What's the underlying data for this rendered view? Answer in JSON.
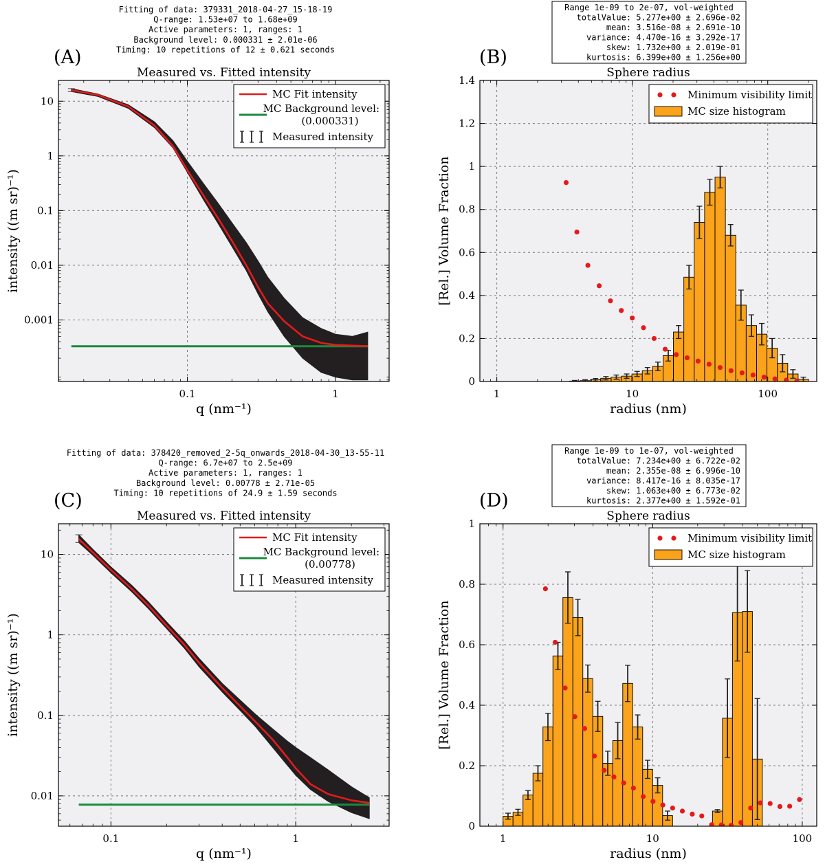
{
  "chart_data": [
    {
      "id": "A",
      "type": "line",
      "panel_label": "(A)",
      "header_lines": [
        "Fitting of data: 379331_2018-04-27_15-18-19",
        "Q-range: 1.53e+07 to 1.68e+09",
        "Active parameters: 1, ranges: 1",
        "Background level: 0.000331 ± 2.01e-06",
        "Timing: 10 repetitions of  12 ± 0.621 seconds"
      ],
      "title": "Measured vs. Fitted intensity",
      "xlabel": "q (nm⁻¹)",
      "ylabel": "intensity ((m sr)⁻¹)",
      "xscale": "log",
      "yscale": "log",
      "xlim": [
        0.0135,
        2.3
      ],
      "ylim": [
        7.5e-05,
        24
      ],
      "xticks": [
        {
          "v": 0.1,
          "label": "0.1"
        },
        {
          "v": 1,
          "label": "1"
        }
      ],
      "yticks": [
        {
          "v": 10,
          "label": "10"
        },
        {
          "v": 1,
          "label": "1"
        },
        {
          "v": 0.1,
          "label": "0.1"
        },
        {
          "v": 0.01,
          "label": "0.01"
        },
        {
          "v": 0.001,
          "label": "0.001"
        }
      ],
      "legend": [
        "MC Fit intensity",
        "MC Background level:",
        "(0.000331)",
        "Measured intensity"
      ],
      "legend_position": "top-right",
      "fit_curve": {
        "q": [
          0.0165,
          0.025,
          0.04,
          0.06,
          0.08,
          0.1,
          0.13,
          0.16,
          0.2,
          0.25,
          0.3,
          0.35,
          0.45,
          0.6,
          0.8,
          1.0,
          1.3,
          1.65
        ],
        "I": [
          16,
          13,
          8,
          3.6,
          1.5,
          0.55,
          0.18,
          0.075,
          0.028,
          0.01,
          0.004,
          0.002,
          0.00095,
          0.0005,
          0.00038,
          0.00035,
          0.00034,
          0.000332
        ]
      },
      "measured_upper": {
        "q": [
          0.0165,
          0.025,
          0.04,
          0.06,
          0.08,
          0.1,
          0.13,
          0.16,
          0.2,
          0.25,
          0.3,
          0.35,
          0.45,
          0.6,
          0.8,
          1.0,
          1.3,
          1.65
        ],
        "I": [
          17,
          13.5,
          8.6,
          4.2,
          1.9,
          0.8,
          0.3,
          0.14,
          0.06,
          0.026,
          0.012,
          0.006,
          0.0025,
          0.0011,
          0.0007,
          0.00055,
          0.0005,
          0.0006
        ]
      },
      "measured_lower": {
        "q": [
          0.0165,
          0.025,
          0.04,
          0.06,
          0.08,
          0.1,
          0.13,
          0.16,
          0.2,
          0.25,
          0.3,
          0.35,
          0.45,
          0.6,
          0.8,
          1.0,
          1.3,
          1.65
        ],
        "I": [
          15,
          12.2,
          7.4,
          3.3,
          1.4,
          0.5,
          0.15,
          0.06,
          0.022,
          0.008,
          0.003,
          0.0014,
          0.0005,
          0.0002,
          0.00011,
          9e-05,
          8e-05,
          8e-05
        ]
      },
      "background_level": 0.000331,
      "background_range": [
        0.0165,
        1.65
      ]
    },
    {
      "id": "B",
      "type": "bar",
      "panel_label": "(B)",
      "stats_lines": [
        "Range 1e-09 to 2e-07, vol-weighted",
        "totalValue: 5.277e+00 ± 2.696e-02",
        "mean: 3.516e-08 ± 2.691e-10",
        "variance: 4.470e-16 ± 3.292e-17",
        "skew: 1.732e+00 ± 2.019e-01",
        "kurtosis: 6.399e+00 ± 1.256e+00"
      ],
      "title": "Sphere radius",
      "xlabel": "radius (nm)",
      "ylabel": "[Rel.] Volume Fraction",
      "xscale": "log",
      "xlim": [
        0.75,
        230
      ],
      "ylim": [
        0,
        1.4
      ],
      "xticks": [
        {
          "v": 1,
          "label": "1"
        },
        {
          "v": 10,
          "label": "10"
        },
        {
          "v": 100,
          "label": "100"
        }
      ],
      "yticks": [
        {
          "v": 0,
          "label": "0"
        },
        {
          "v": 0.2,
          "label": "0.2"
        },
        {
          "v": 0.4,
          "label": "0.4"
        },
        {
          "v": 0.6,
          "label": "0.6"
        },
        {
          "v": 0.8,
          "label": "0.8"
        },
        {
          "v": 1.0,
          "label": "1"
        },
        {
          "v": 1.2,
          "label": "1.2"
        },
        {
          "v": 1.4,
          "label": "1.4"
        }
      ],
      "legend": [
        "Minimum visibility limit",
        "MC size histogram"
      ],
      "legend_position": "top-right",
      "bins": {
        "min": 1,
        "max": 200,
        "count": 30
      },
      "values": [
        0,
        0,
        0,
        0,
        0,
        0,
        0,
        0.002,
        0.004,
        0.008,
        0.015,
        0.02,
        0.025,
        0.035,
        0.05,
        0.07,
        0.12,
        0.23,
        0.485,
        0.74,
        0.88,
        0.95,
        0.68,
        0.355,
        0.26,
        0.22,
        0.155,
        0.085,
        0.035,
        0.01
      ],
      "errors": [
        0,
        0,
        0,
        0,
        0,
        0,
        0,
        0.003,
        0.004,
        0.006,
        0.008,
        0.01,
        0.01,
        0.012,
        0.015,
        0.02,
        0.025,
        0.03,
        0.055,
        0.075,
        0.06,
        0.05,
        0.05,
        0.07,
        0.05,
        0.05,
        0.045,
        0.04,
        0.02,
        0.01
      ],
      "min_visibility": {
        "r": [
          3.25,
          3.9,
          4.7,
          5.7,
          6.9,
          8.3,
          10.0,
          12.1,
          14.5,
          17.5,
          21.1,
          25.4,
          30.6,
          36.9,
          44.5,
          53.6,
          64.6,
          77.9,
          93.9,
          113.0,
          137.0,
          164.0
        ],
        "v": [
          0.925,
          0.695,
          0.54,
          0.445,
          0.375,
          0.33,
          0.295,
          0.25,
          0.2,
          0.15,
          0.125,
          0.11,
          0.095,
          0.08,
          0.065,
          0.05,
          0.04,
          0.03,
          0.02,
          0.012,
          0.006,
          0.002
        ]
      }
    },
    {
      "id": "C",
      "type": "line",
      "panel_label": "(C)",
      "header_lines": [
        "Fitting of data: 378420_removed_2-5q_onwards_2018-04-30_13-55-11",
        "Q-range: 6.7e+07 to 2.5e+09",
        "Active parameters: 1, ranges: 1",
        "Background level: 0.00778 ± 2.71e-05",
        "Timing: 10 repetitions of 24.9 ± 1.59 seconds"
      ],
      "title": "Measured vs. Fitted intensity",
      "xlabel": "q (nm⁻¹)",
      "ylabel": "intensity ((m sr)⁻¹)",
      "xscale": "log",
      "yscale": "log",
      "xlim": [
        0.052,
        3.2
      ],
      "ylim": [
        0.0042,
        24
      ],
      "xticks": [
        {
          "v": 0.1,
          "label": "0.1"
        },
        {
          "v": 1,
          "label": "1"
        }
      ],
      "yticks": [
        {
          "v": 10,
          "label": "10"
        },
        {
          "v": 1,
          "label": "1"
        },
        {
          "v": 0.1,
          "label": "0.1"
        },
        {
          "v": 0.01,
          "label": "0.01"
        }
      ],
      "legend": [
        "MC Fit intensity",
        "MC Background level:",
        "(0.00778)",
        "Measured intensity"
      ],
      "legend_position": "top-right",
      "fit_curve": {
        "q": [
          0.067,
          0.08,
          0.1,
          0.13,
          0.16,
          0.2,
          0.25,
          0.3,
          0.4,
          0.5,
          0.6,
          0.75,
          0.9,
          1.0,
          1.2,
          1.5,
          2.0,
          2.5
        ],
        "I": [
          15.5,
          10.5,
          6.4,
          3.7,
          2.3,
          1.3,
          0.75,
          0.45,
          0.22,
          0.13,
          0.085,
          0.05,
          0.03,
          0.022,
          0.014,
          0.0105,
          0.0088,
          0.0082
        ]
      },
      "measured_upper": {
        "q": [
          0.067,
          0.08,
          0.1,
          0.13,
          0.16,
          0.2,
          0.25,
          0.3,
          0.4,
          0.5,
          0.6,
          0.75,
          0.9,
          1.0,
          1.2,
          1.5,
          2.0,
          2.5
        ],
        "I": [
          17.5,
          11.5,
          7.0,
          4.1,
          2.55,
          1.45,
          0.84,
          0.51,
          0.25,
          0.155,
          0.105,
          0.068,
          0.048,
          0.04,
          0.03,
          0.021,
          0.013,
          0.0095
        ]
      },
      "measured_lower": {
        "q": [
          0.067,
          0.08,
          0.1,
          0.13,
          0.16,
          0.2,
          0.25,
          0.3,
          0.4,
          0.5,
          0.6,
          0.75,
          0.9,
          1.0,
          1.2,
          1.5,
          2.0,
          2.5
        ],
        "I": [
          14,
          9.7,
          5.9,
          3.4,
          2.1,
          1.2,
          0.68,
          0.4,
          0.195,
          0.115,
          0.074,
          0.04,
          0.024,
          0.018,
          0.012,
          0.0085,
          0.0062,
          0.0052
        ]
      },
      "background_level": 0.00778,
      "background_range": [
        0.067,
        2.5
      ]
    },
    {
      "id": "D",
      "type": "bar",
      "panel_label": "(D)",
      "stats_lines": [
        "Range 1e-09 to 1e-07, vol-weighted",
        "totalValue: 7.234e+00 ± 6.722e-02",
        "mean: 2.355e-08 ± 6.996e-10",
        "variance: 8.417e-16 ± 8.035e-17",
        "skew: 1.063e+00 ± 6.773e-02",
        "kurtosis: 2.377e+00 ± 1.592e-01"
      ],
      "title": "Sphere radius",
      "xlabel": "radius (nm)",
      "ylabel": "[Rel.] Volume Fraction",
      "xscale": "log",
      "xlim": [
        0.7,
        125
      ],
      "ylim": [
        0,
        1.0
      ],
      "xticks": [
        {
          "v": 1,
          "label": "1"
        },
        {
          "v": 10,
          "label": "10"
        },
        {
          "v": 100,
          "label": "100"
        }
      ],
      "yticks": [
        {
          "v": 0,
          "label": "0"
        },
        {
          "v": 0.2,
          "label": "0.2"
        },
        {
          "v": 0.4,
          "label": "0.4"
        },
        {
          "v": 0.6,
          "label": "0.6"
        },
        {
          "v": 0.8,
          "label": "0.8"
        },
        {
          "v": 1.0,
          "label": "1"
        }
      ],
      "legend": [
        "Minimum visibility limit",
        "MC size histogram"
      ],
      "legend_position": "top-right",
      "bins": {
        "min": 1,
        "max": 100,
        "count": 30
      },
      "values": [
        0.033,
        0.046,
        0.103,
        0.175,
        0.328,
        0.563,
        0.756,
        0.69,
        0.488,
        0.363,
        0.208,
        0.283,
        0.472,
        0.328,
        0.188,
        0.135,
        0.035,
        0,
        0,
        0,
        0,
        0.05,
        0.357,
        0.706,
        0.71,
        0.222,
        0,
        0,
        0,
        0
      ],
      "errors": [
        0.01,
        0.01,
        0.015,
        0.025,
        0.045,
        0.045,
        0.085,
        0.06,
        0.045,
        0.05,
        0.04,
        0.06,
        0.06,
        0.04,
        0.03,
        0.025,
        0.015,
        0,
        0,
        0,
        0,
        0.005,
        0.13,
        0.16,
        0.135,
        0.2,
        0,
        0,
        0,
        0
      ],
      "min_visibility": {
        "r": [
          1.92,
          2.23,
          2.6,
          3.02,
          3.51,
          4.08,
          4.74,
          5.51,
          6.4,
          7.44,
          8.65,
          10.05,
          11.7,
          13.6,
          15.8,
          18.4,
          21.3,
          24.8,
          28.8,
          33.5,
          38.9,
          45.2,
          52.5,
          61.0,
          70.9,
          82.4,
          95.8
        ],
        "v": [
          0.785,
          0.608,
          0.457,
          0.362,
          0.323,
          0.232,
          0.185,
          0.163,
          0.143,
          0.126,
          0.098,
          0.082,
          0.07,
          0.06,
          0.05,
          0.04,
          0.034,
          0.005,
          0.004,
          0.003,
          0.012,
          0.06,
          0.077,
          0.075,
          0.065,
          0.066,
          0.088
        ]
      }
    }
  ]
}
